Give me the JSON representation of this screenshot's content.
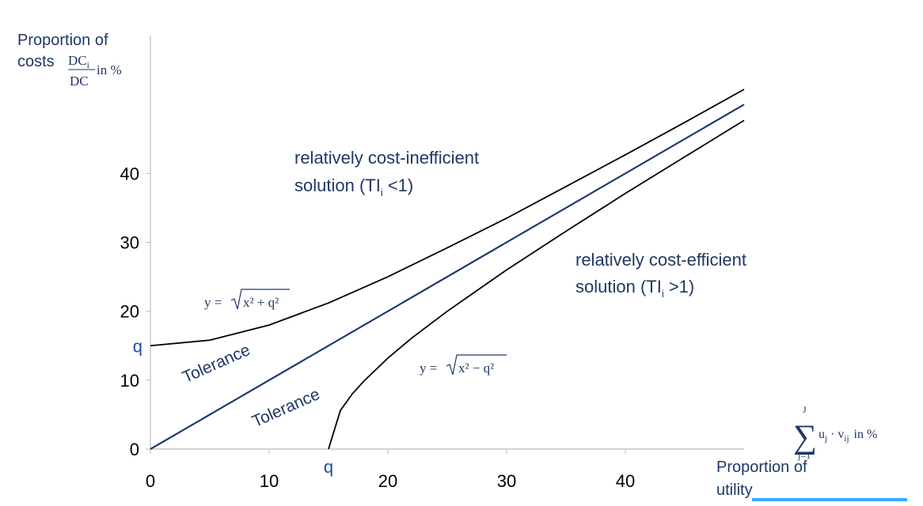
{
  "chart_data": {
    "type": "line",
    "xlim": [
      0,
      50
    ],
    "ylim": [
      0,
      60
    ],
    "xticks": [
      0,
      10,
      {
        "value": 15,
        "label": "q"
      },
      20,
      30,
      40
    ],
    "yticks": [
      0,
      10,
      {
        "value": 15,
        "label": "q"
      },
      20,
      30,
      40
    ],
    "series": [
      {
        "color": "#000000",
        "x": [
          0,
          5,
          10,
          15,
          20,
          25,
          30,
          35,
          40,
          45,
          50
        ],
        "values": [
          15,
          15.8,
          18.0,
          21.2,
          25,
          29.2,
          33.5,
          38.1,
          42.7,
          47.4,
          52.2
        ]
      },
      {
        "color": "#1f3b6e",
        "x": [
          0,
          50
        ],
        "values": [
          0,
          50
        ]
      },
      {
        "color": "#000000",
        "x": [
          15,
          16,
          17,
          18,
          20,
          22,
          25,
          30,
          35,
          40,
          45,
          50
        ],
        "values": [
          0,
          5.6,
          8,
          9.9,
          13.2,
          16.1,
          20,
          26,
          31.6,
          37.1,
          42.4,
          47.7
        ]
      }
    ],
    "y_label": {
      "line1": "Proportion of",
      "line2": "costs",
      "num": "DC",
      "num_sub": "i",
      "den": "DC",
      "unit": "in %"
    },
    "x_label": {
      "line1": "Proportion of",
      "line2": "utility"
    },
    "sum_label": {
      "upper": "J",
      "lower": "j=1",
      "term": "u",
      "term_sub": "j",
      "mid": " · v",
      "mid_sub": "ij",
      "unit": "in %"
    },
    "region_upper": {
      "line1": "relatively cost-inefficient",
      "line2": "solution (TI",
      "sub": "i",
      "tail": " <1)"
    },
    "region_lower": {
      "line1": "relatively cost-efficient",
      "line2": "solution (TI",
      "sub": "i",
      "tail": " >1)"
    },
    "curve_upper_label": {
      "lhs": "y = ",
      "radicand": "x² + q²"
    },
    "curve_lower_label": {
      "lhs": "y = ",
      "radicand": "x² − q²"
    },
    "tolerance_labels": [
      "Tolerance",
      "Tolerance"
    ]
  }
}
